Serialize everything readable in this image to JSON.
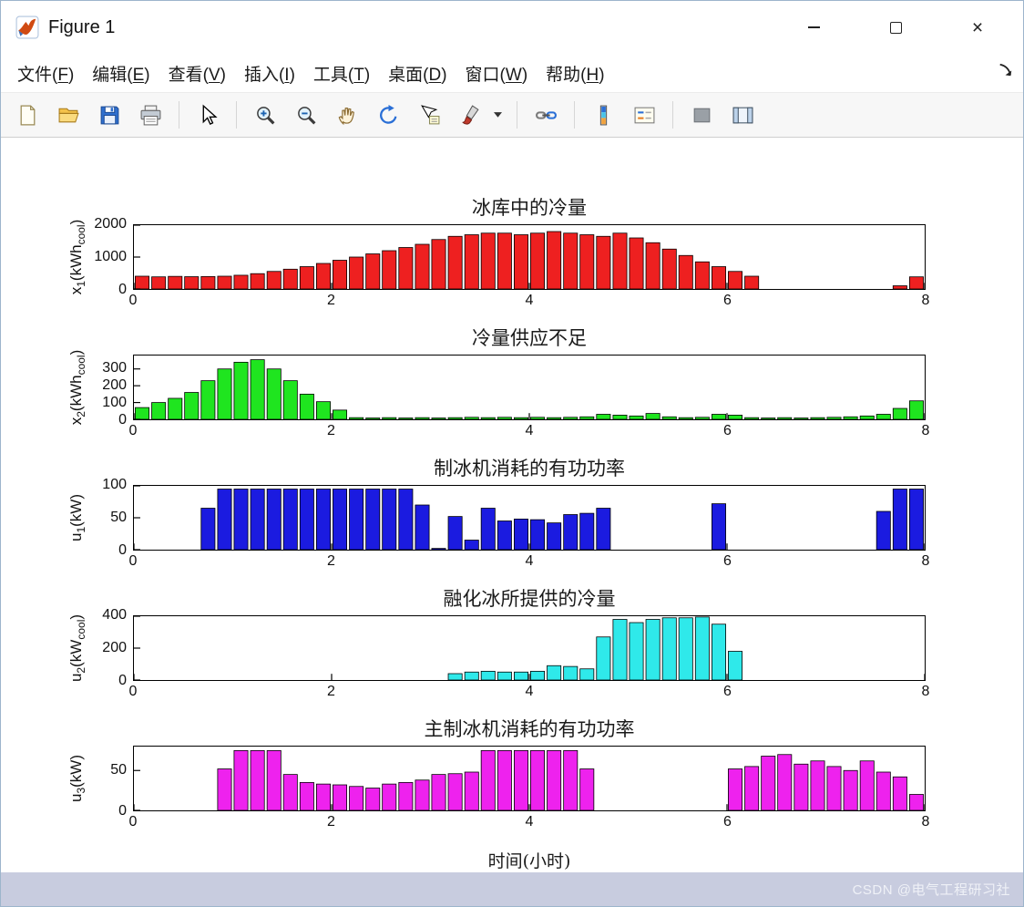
{
  "window": {
    "title": "Figure 1",
    "controls": {
      "minimize": "minimize",
      "maximize": "maximize",
      "close_glyph": "×"
    }
  },
  "menu": {
    "items": [
      {
        "text": "文件",
        "key": "F"
      },
      {
        "text": "编辑",
        "key": "E"
      },
      {
        "text": "查看",
        "key": "V"
      },
      {
        "text": "插入",
        "key": "I"
      },
      {
        "text": "工具",
        "key": "T"
      },
      {
        "text": "桌面",
        "key": "D"
      },
      {
        "text": "窗口",
        "key": "W"
      },
      {
        "text": "帮助",
        "key": "H"
      }
    ]
  },
  "toolbar": {
    "icons": [
      "new-file",
      "open-file",
      "save-figure",
      "print-figure",
      "edit-plot",
      "zoom-in",
      "zoom-out",
      "pan",
      "rotate-3d",
      "data-cursor",
      "brush-data",
      "link-plot",
      "insert-colorbar",
      "insert-legend",
      "hide-plot-tools",
      "show-plot-tools"
    ]
  },
  "xlabel": "时间(小时)",
  "watermark": "CSDN @电气工程研习社",
  "chart_data": [
    {
      "type": "bar",
      "title": "冰库中的冷量",
      "ylabel": [
        [
          "x",
          0
        ],
        [
          "1",
          1
        ],
        [
          "(kWh",
          0
        ],
        [
          "cool",
          1
        ],
        [
          ")",
          0
        ]
      ],
      "color": "#ee2020",
      "xlim": [
        0,
        8
      ],
      "ylim": [
        0,
        2000
      ],
      "xticks": [
        0,
        2,
        4,
        6,
        8
      ],
      "yticks": [
        0,
        1000,
        2000
      ],
      "bar_width": 0.14,
      "x": [
        0.083,
        0.25,
        0.417,
        0.583,
        0.75,
        0.917,
        1.083,
        1.25,
        1.417,
        1.583,
        1.75,
        1.917,
        2.083,
        2.25,
        2.417,
        2.583,
        2.75,
        2.917,
        3.083,
        3.25,
        3.417,
        3.583,
        3.75,
        3.917,
        4.083,
        4.25,
        4.417,
        4.583,
        4.75,
        4.917,
        5.083,
        5.25,
        5.417,
        5.583,
        5.75,
        5.917,
        6.083,
        6.25,
        6.417,
        6.583,
        6.75,
        6.917,
        7.083,
        7.25,
        7.417,
        7.583,
        7.75,
        7.917
      ],
      "values": [
        400,
        380,
        395,
        385,
        390,
        400,
        430,
        480,
        550,
        620,
        700,
        800,
        900,
        1000,
        1100,
        1200,
        1300,
        1400,
        1550,
        1650,
        1700,
        1750,
        1750,
        1700,
        1750,
        1800,
        1750,
        1700,
        1650,
        1750,
        1600,
        1450,
        1250,
        1050,
        850,
        700,
        550,
        400,
        0,
        0,
        0,
        0,
        0,
        0,
        0,
        0,
        100,
        380
      ]
    },
    {
      "type": "bar",
      "title": "冷量供应不足",
      "ylabel": [
        [
          "x",
          0
        ],
        [
          "2",
          1
        ],
        [
          "(kWh",
          0
        ],
        [
          "cool",
          1
        ],
        [
          ")",
          0
        ]
      ],
      "color": "#1fe51f",
      "xlim": [
        0,
        8
      ],
      "ylim": [
        0,
        380
      ],
      "xticks": [
        0,
        2,
        4,
        6,
        8
      ],
      "yticks": [
        0,
        100,
        200,
        300
      ],
      "bar_width": 0.14,
      "x": [
        0.083,
        0.25,
        0.417,
        0.583,
        0.75,
        0.917,
        1.083,
        1.25,
        1.417,
        1.583,
        1.75,
        1.917,
        2.083,
        2.25,
        2.417,
        2.583,
        2.75,
        2.917,
        3.083,
        3.25,
        3.417,
        3.583,
        3.75,
        3.917,
        4.083,
        4.25,
        4.417,
        4.583,
        4.75,
        4.917,
        5.083,
        5.25,
        5.417,
        5.583,
        5.75,
        5.917,
        6.083,
        6.25,
        6.417,
        6.583,
        6.75,
        6.917,
        7.083,
        7.25,
        7.417,
        7.583,
        7.75,
        7.917
      ],
      "values": [
        70,
        100,
        125,
        160,
        230,
        300,
        340,
        355,
        300,
        230,
        150,
        105,
        55,
        10,
        8,
        10,
        8,
        10,
        8,
        10,
        12,
        10,
        12,
        10,
        12,
        10,
        12,
        15,
        30,
        25,
        20,
        35,
        15,
        10,
        12,
        30,
        25,
        10,
        8,
        10,
        8,
        10,
        12,
        15,
        20,
        30,
        65,
        110
      ]
    },
    {
      "type": "bar",
      "title": "制冰机消耗的有功功率",
      "ylabel": [
        [
          "u",
          0
        ],
        [
          "1",
          1
        ],
        [
          "(kW)",
          0
        ]
      ],
      "color": "#1b1be0",
      "xlim": [
        0,
        8
      ],
      "ylim": [
        0,
        100
      ],
      "xticks": [
        0,
        2,
        4,
        6,
        8
      ],
      "yticks": [
        0,
        50,
        100
      ],
      "bar_width": 0.14,
      "x": [
        0.083,
        0.25,
        0.417,
        0.583,
        0.75,
        0.917,
        1.083,
        1.25,
        1.417,
        1.583,
        1.75,
        1.917,
        2.083,
        2.25,
        2.417,
        2.583,
        2.75,
        2.917,
        3.083,
        3.25,
        3.417,
        3.583,
        3.75,
        3.917,
        4.083,
        4.25,
        4.417,
        4.583,
        4.75,
        4.917,
        5.083,
        5.25,
        5.417,
        5.583,
        5.75,
        5.917,
        6.083,
        6.25,
        6.417,
        6.583,
        6.75,
        6.917,
        7.083,
        7.25,
        7.417,
        7.583,
        7.75,
        7.917
      ],
      "values": [
        0,
        0,
        0,
        0,
        65,
        95,
        95,
        95,
        95,
        95,
        95,
        95,
        95,
        95,
        95,
        95,
        95,
        70,
        2,
        52,
        15,
        65,
        45,
        48,
        47,
        42,
        55,
        57,
        65,
        0,
        0,
        0,
        0,
        0,
        0,
        72,
        0,
        0,
        0,
        0,
        0,
        0,
        0,
        0,
        0,
        60,
        95,
        95
      ]
    },
    {
      "type": "bar",
      "title": "融化冰所提供的冷量",
      "ylabel": [
        [
          "u",
          0
        ],
        [
          "2",
          1
        ],
        [
          "(kW",
          0
        ],
        [
          "cool",
          1
        ],
        [
          ")",
          0
        ]
      ],
      "color": "#2fe9ea",
      "xlim": [
        0,
        8
      ],
      "ylim": [
        0,
        400
      ],
      "xticks": [
        0,
        2,
        4,
        6,
        8
      ],
      "yticks": [
        0,
        200,
        400
      ],
      "bar_width": 0.14,
      "x": [
        0.083,
        0.25,
        0.417,
        0.583,
        0.75,
        0.917,
        1.083,
        1.25,
        1.417,
        1.583,
        1.75,
        1.917,
        2.083,
        2.25,
        2.417,
        2.583,
        2.75,
        2.917,
        3.083,
        3.25,
        3.417,
        3.583,
        3.75,
        3.917,
        4.083,
        4.25,
        4.417,
        4.583,
        4.75,
        4.917,
        5.083,
        5.25,
        5.417,
        5.583,
        5.75,
        5.917,
        6.083,
        6.25,
        6.417,
        6.583,
        6.75,
        6.917,
        7.083,
        7.25,
        7.417,
        7.583,
        7.75,
        7.917
      ],
      "values": [
        0,
        0,
        0,
        0,
        0,
        0,
        0,
        0,
        0,
        0,
        0,
        0,
        0,
        0,
        0,
        0,
        0,
        0,
        0,
        40,
        50,
        55,
        50,
        50,
        55,
        90,
        85,
        70,
        270,
        380,
        360,
        380,
        390,
        390,
        395,
        350,
        180,
        0,
        0,
        0,
        0,
        0,
        0,
        0,
        0,
        0,
        0,
        0
      ]
    },
    {
      "type": "bar",
      "title": "主制冰机消耗的有功功率",
      "ylabel": [
        [
          "u",
          0
        ],
        [
          "3",
          1
        ],
        [
          "(kW)",
          0
        ]
      ],
      "color": "#ee22ee",
      "xlim": [
        0,
        8
      ],
      "ylim": [
        0,
        80
      ],
      "xticks": [
        0,
        2,
        4,
        6,
        8
      ],
      "yticks": [
        0,
        50
      ],
      "bar_width": 0.14,
      "x": [
        0.083,
        0.25,
        0.417,
        0.583,
        0.75,
        0.917,
        1.083,
        1.25,
        1.417,
        1.583,
        1.75,
        1.917,
        2.083,
        2.25,
        2.417,
        2.583,
        2.75,
        2.917,
        3.083,
        3.25,
        3.417,
        3.583,
        3.75,
        3.917,
        4.083,
        4.25,
        4.417,
        4.583,
        4.75,
        4.917,
        5.083,
        5.25,
        5.417,
        5.583,
        5.75,
        5.917,
        6.083,
        6.25,
        6.417,
        6.583,
        6.75,
        6.917,
        7.083,
        7.25,
        7.417,
        7.583,
        7.75,
        7.917
      ],
      "values": [
        0,
        0,
        0,
        0,
        0,
        52,
        75,
        75,
        75,
        45,
        35,
        33,
        32,
        30,
        28,
        33,
        35,
        38,
        45,
        46,
        48,
        75,
        75,
        75,
        75,
        75,
        75,
        52,
        0,
        0,
        0,
        0,
        0,
        0,
        0,
        0,
        52,
        55,
        68,
        70,
        58,
        62,
        55,
        50,
        62,
        48,
        42,
        20
      ]
    }
  ]
}
